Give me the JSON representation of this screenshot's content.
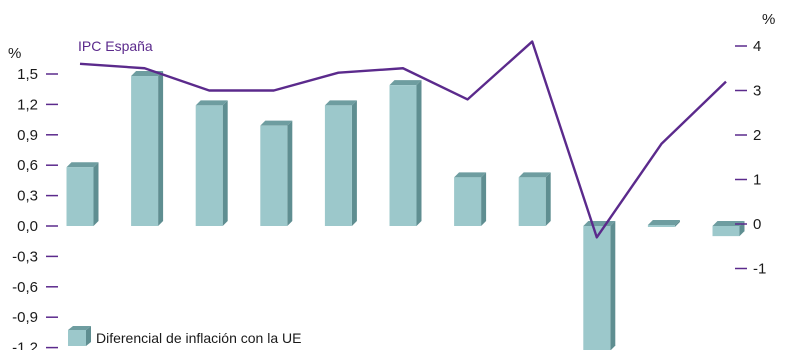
{
  "chart_data": {
    "type": "bar",
    "left_axis": {
      "unit": "%",
      "ticks": [
        "1,5",
        "1,2",
        "0,9",
        "0,6",
        "0,3",
        "0,0",
        "-0,3",
        "-0,6",
        "-0,9",
        "-1,2"
      ],
      "ylim": [
        -1.2,
        1.5
      ]
    },
    "right_axis": {
      "unit": "%",
      "ticks": [
        "4",
        "3",
        "2",
        "1",
        "0",
        "-1"
      ],
      "ylim": [
        -1,
        4
      ]
    },
    "bars": {
      "name": "Diferencial de inflación con la UE",
      "values": [
        0.58,
        1.48,
        1.19,
        0.99,
        1.19,
        1.39,
        0.48,
        0.48,
        -1.23,
        -0.01,
        -0.1
      ]
    },
    "line": {
      "name": "IPC España",
      "values": [
        3.6,
        3.5,
        3.0,
        3.0,
        3.4,
        3.5,
        2.8,
        4.1,
        -0.3,
        1.8,
        3.2
      ]
    },
    "colors": {
      "bar_front": "#9cc8cb",
      "bar_side": "#5f8e91",
      "bar_top": "#6e9da0",
      "line": "#5b2a8c",
      "axis_ticks": "#5b2a8c"
    },
    "grid": false,
    "legend_position": "bottom-left"
  }
}
